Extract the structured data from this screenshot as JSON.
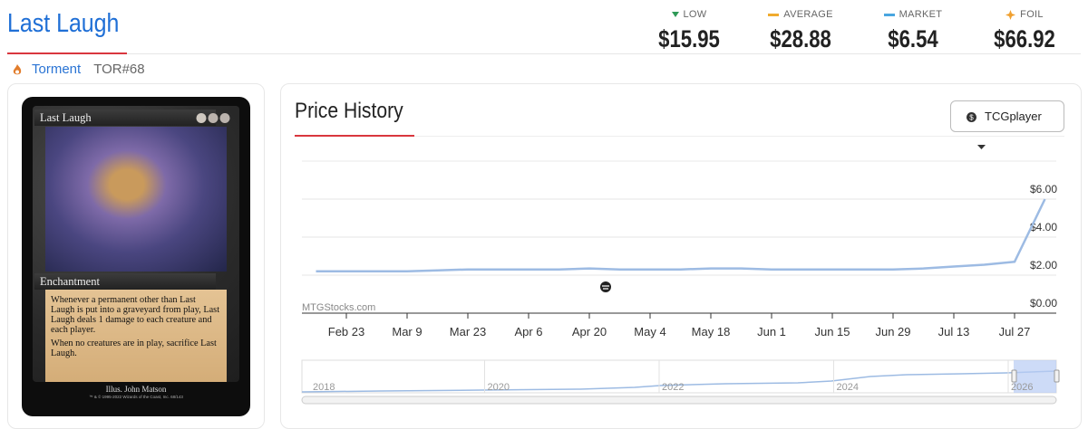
{
  "header": {
    "title": "Last Laugh",
    "set": "Torment",
    "code": "TOR#68"
  },
  "prices": [
    {
      "label": "LOW",
      "value": "$15.95"
    },
    {
      "label": "AVERAGE",
      "value": "$28.88"
    },
    {
      "label": "MARKET",
      "value": "$6.54"
    },
    {
      "label": "FOIL",
      "value": "$66.92"
    }
  ],
  "card": {
    "name": "Last Laugh",
    "type": "Enchantment",
    "text": [
      "Whenever a permanent other than Last Laugh is put into a graveyard from play, Last Laugh deals 1 damage to each creature and each player.",
      "When no creatures are in play, sacrifice Last Laugh."
    ],
    "artist": "Illus. John Matson",
    "copyright": "™ & © 1995-2022 Wizards of the Coast, Inc. 68/143"
  },
  "panel": {
    "title": "Price History",
    "source": "TCGplayer",
    "watermark": "MTGStocks.com"
  },
  "navigator": {
    "labels": [
      "2018",
      "2020",
      "2022",
      "2024",
      "2026"
    ]
  },
  "chart_data": {
    "type": "line",
    "categories": [
      null,
      "Feb 23",
      null,
      "Mar 9",
      null,
      "Mar 23",
      null,
      "Apr 6",
      null,
      "Apr 20",
      null,
      "May 4",
      null,
      "May 18",
      null,
      "Jun 1",
      null,
      "Jun 15",
      null,
      "Jun 29",
      null,
      "Jul 13",
      null,
      "Jul 27",
      null
    ],
    "series": [
      {
        "color": "#9dbbe3",
        "values": [
          2.2,
          2.2,
          2.2,
          2.2,
          2.25,
          2.3,
          2.3,
          2.3,
          2.3,
          2.35,
          2.3,
          2.3,
          2.3,
          2.35,
          2.35,
          2.3,
          2.3,
          2.3,
          2.3,
          2.3,
          2.35,
          2.45,
          2.55,
          2.7,
          6.0
        ]
      }
    ],
    "ylim": [
      0,
      8
    ],
    "yticks": [
      {
        "value": 0,
        "label": "$0.00"
      },
      {
        "value": 2,
        "label": "$2.00"
      },
      {
        "value": 4,
        "label": "$4.00"
      },
      {
        "value": 6,
        "label": "$6.00"
      }
    ],
    "grid": true
  }
}
